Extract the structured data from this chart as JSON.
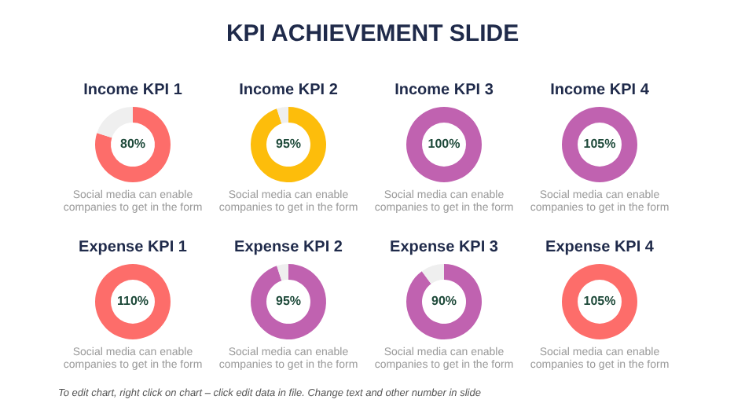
{
  "chart_data": [
    {
      "type": "other",
      "title": "KPI ACHIEVEMENT SLIDE"
    },
    {
      "type": "donut",
      "title": "Income KPI 1",
      "categories": [
        null,
        null
      ],
      "values": [
        80,
        20
      ],
      "colors": [
        "#fd6d6a",
        "#efefef"
      ],
      "annotations": [
        "80%",
        "Social media can enable companies to get in the form"
      ]
    },
    {
      "type": "donut",
      "title": "Income KPI 2",
      "categories": [
        null,
        null
      ],
      "values": [
        95,
        5
      ],
      "colors": [
        "#fdbd0b",
        "#efefef"
      ],
      "annotations": [
        "95%",
        "Social media can enable companies to get in the form"
      ]
    },
    {
      "type": "donut",
      "title": "Income KPI 3",
      "categories": [
        null
      ],
      "values": [
        100
      ],
      "colors": [
        "#c062b0"
      ],
      "annotations": [
        "100%",
        "Social media can enable companies to get in the form"
      ]
    },
    {
      "type": "donut",
      "title": "Income KPI 4",
      "categories": [
        null
      ],
      "values": [
        100
      ],
      "colors": [
        "#c062b0"
      ],
      "annotations": [
        "105%",
        "Social media can enable companies to get in the form"
      ]
    },
    {
      "type": "donut",
      "title": "Expense KPI 1",
      "categories": [
        null
      ],
      "values": [
        100
      ],
      "colors": [
        "#fd6d6a"
      ],
      "annotations": [
        "110%",
        "Social media can enable companies to get in the form"
      ]
    },
    {
      "type": "donut",
      "title": "Expense KPI 2",
      "categories": [
        null,
        null
      ],
      "values": [
        95,
        5
      ],
      "colors": [
        "#c062b0",
        "#efefef"
      ],
      "annotations": [
        "95%",
        "Social media can enable companies to get in the form"
      ]
    },
    {
      "type": "donut",
      "title": "Expense KPI 3",
      "categories": [
        null,
        null
      ],
      "values": [
        90,
        10
      ],
      "colors": [
        "#c062b0",
        "#efefef"
      ],
      "annotations": [
        "90%",
        "Social media can enable companies to get in the form"
      ]
    },
    {
      "type": "donut",
      "title": "Expense KPI 4",
      "categories": [
        null
      ],
      "values": [
        100
      ],
      "colors": [
        "#fd6d6a"
      ],
      "annotations": [
        "105%",
        "Social media can enable companies to get in the form"
      ]
    },
    {
      "type": "other",
      "annotations": [
        "To edit chart, right click on chart – click edit data in file. Change text and other number in slide"
      ]
    }
  ]
}
